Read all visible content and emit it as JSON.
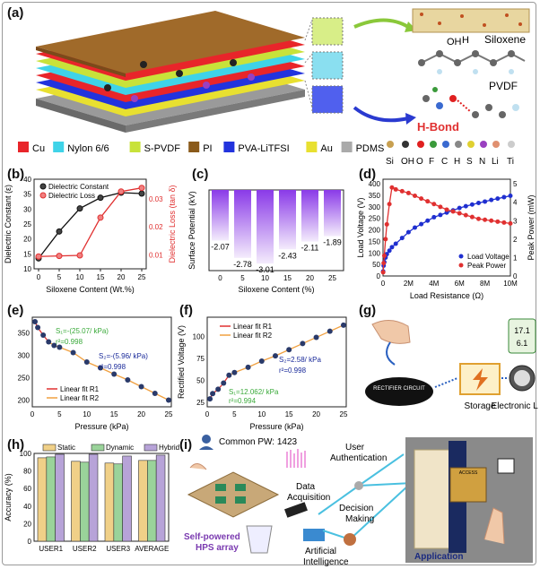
{
  "panels": {
    "a": "(a)",
    "b": "(b)",
    "c": "(c)",
    "d": "(d)",
    "e": "(e)",
    "f": "(f)",
    "g": "(g)",
    "h": "(h)",
    "i": "(i)"
  },
  "panel_a": {
    "labels": {
      "siloxene": "Siloxene",
      "pvdf": "PVDF",
      "hbond": "H-Bond",
      "oh": "OH",
      "h": "H"
    },
    "legend": [
      {
        "name": "Cu",
        "color": "#e8252a"
      },
      {
        "name": "Nylon 6/6",
        "color": "#3fd3e8"
      },
      {
        "name": "S-PVDF",
        "color": "#c8e23a"
      },
      {
        "name": "PI",
        "color": "#8a5a1a"
      },
      {
        "name": "PVA-LiTFSI",
        "color": "#2233dd"
      },
      {
        "name": "Au",
        "color": "#e8e030"
      },
      {
        "name": "PDMS",
        "color": "#aaaaaa"
      }
    ],
    "atoms": [
      {
        "name": "Si",
        "color": "#c8a050"
      },
      {
        "name": "OH",
        "color": "#333333"
      },
      {
        "name": "O",
        "color": "#e02020"
      },
      {
        "name": "F",
        "color": "#3a9a3a"
      },
      {
        "name": "C",
        "color": "#3a6ad0"
      },
      {
        "name": "H",
        "color": "#888888"
      },
      {
        "name": "S",
        "color": "#e0d030"
      },
      {
        "name": "N",
        "color": "#9a40c0"
      },
      {
        "name": "Li",
        "color": "#e09070"
      },
      {
        "name": "Ti",
        "color": "#cccccc"
      }
    ]
  },
  "chart_data": [
    {
      "id": "b",
      "type": "line",
      "xlabel": "Siloxene Content (Wt.%)",
      "ylabel": "Dielectric Constant (ε)",
      "y2label": "Dielectric Loss (tan δ)",
      "x": [
        0,
        5,
        10,
        15,
        20,
        25
      ],
      "xticks": [
        "0",
        "5",
        "10",
        "15",
        "20",
        "25"
      ],
      "yticks": [
        "10",
        "15",
        "20",
        "25",
        "30",
        "35",
        "40"
      ],
      "y2ticks": [
        "0.01",
        "0.02",
        "0.03"
      ],
      "ylim": [
        10,
        40
      ],
      "y2lim": [
        0.005,
        0.037
      ],
      "series": [
        {
          "name": "Dielectric Constant",
          "axis": "left",
          "color": "#111111",
          "values": [
            13.5,
            22.5,
            30.2,
            33.8,
            35.5,
            35.2
          ]
        },
        {
          "name": "Dielectric Loss",
          "axis": "right",
          "color": "#e03030",
          "values": [
            0.0094,
            0.0096,
            0.0098,
            0.0233,
            0.0326,
            0.0339
          ]
        }
      ]
    },
    {
      "id": "c",
      "type": "bar",
      "ylabel": "Surface Potential (kV)",
      "xlabel": "Siloxene Content (%)",
      "categories": [
        "0",
        "5",
        "10",
        "15",
        "20",
        "25"
      ],
      "values": [
        -2.07,
        -2.78,
        -3.01,
        -2.43,
        -2.11,
        -1.89
      ],
      "value_labels": [
        "-2.07",
        "-2.78",
        "-3.01",
        "-2.43",
        "-2.11",
        "-1.89"
      ],
      "ylim": [
        -3.3,
        0
      ]
    },
    {
      "id": "d",
      "type": "line",
      "xlabel": "Load Resistance (Ω)",
      "ylabel": "Load Voltage (V)",
      "y2label": "Peak Power (mW)",
      "xticks": [
        "0",
        "2M",
        "4M",
        "6M",
        "8M",
        "10M"
      ],
      "yticks": [
        "0",
        "50",
        "100",
        "150",
        "200",
        "250",
        "300",
        "350",
        "400"
      ],
      "y2ticks": [
        "0",
        "1",
        "2",
        "3",
        "4",
        "5"
      ],
      "xlim": [
        0,
        10
      ],
      "ylim": [
        0,
        420
      ],
      "y2lim": [
        0,
        5.25
      ],
      "series": [
        {
          "name": "Load Voltage",
          "axis": "left",
          "color": "#1f2fd0",
          "x": [
            0.01,
            0.05,
            0.1,
            0.2,
            0.3,
            0.5,
            0.7,
            1,
            1.5,
            2,
            2.5,
            3,
            3.5,
            4,
            4.5,
            5,
            5.5,
            6,
            6.5,
            7,
            7.5,
            8,
            8.5,
            9,
            9.5,
            10
          ],
          "values": [
            20,
            45,
            60,
            80,
            95,
            110,
            125,
            140,
            165,
            190,
            210,
            225,
            240,
            255,
            265,
            275,
            285,
            295,
            303,
            310,
            317,
            323,
            330,
            336,
            342,
            348
          ]
        },
        {
          "name": "Peak Power",
          "axis": "right",
          "color": "#e03030",
          "x": [
            0.01,
            0.05,
            0.1,
            0.2,
            0.3,
            0.5,
            0.7,
            1,
            1.5,
            2,
            2.5,
            3,
            3.5,
            4,
            4.5,
            5,
            5.5,
            6,
            6.5,
            7,
            7.5,
            8,
            8.5,
            9,
            9.5,
            10
          ],
          "values": [
            0.2,
            0.7,
            1.1,
            2.0,
            2.8,
            3.9,
            4.8,
            4.7,
            4.6,
            4.5,
            4.35,
            4.2,
            4.05,
            3.9,
            3.75,
            3.6,
            3.5,
            3.4,
            3.3,
            3.2,
            3.1,
            3.05,
            3.0,
            2.95,
            2.9,
            2.85
          ]
        }
      ]
    },
    {
      "id": "e",
      "type": "scatter",
      "xlabel": "Pressure (kPa)",
      "ylabel": "",
      "xticks": [
        "0",
        "5",
        "10",
        "15",
        "20",
        "25"
      ],
      "yticks": [
        "200",
        "250",
        "300",
        "350"
      ],
      "xlim": [
        0,
        25.5
      ],
      "ylim": [
        185,
        385
      ],
      "x": [
        0.5,
        1,
        2,
        3,
        4,
        5,
        7.5,
        10,
        12.5,
        15,
        17.5,
        20,
        22.5,
        25
      ],
      "values": [
        375,
        362,
        345,
        330,
        322,
        318,
        306,
        285,
        272,
        258,
        245,
        230,
        215,
        200
      ],
      "annotations": [
        {
          "text": "S₁=-(25.07/ kPa)",
          "color": "#3aaa3a"
        },
        {
          "text": "r²=0.998",
          "color": "#3aaa3a"
        },
        {
          "text": "S₂=-(5.96/ kPa)",
          "color": "#1a2a9a"
        },
        {
          "text": "r²=0.998",
          "color": "#1a2a9a"
        }
      ],
      "legend": [
        {
          "name": "Linear fit R1",
          "color": "#e03030"
        },
        {
          "name": "Linear fit R2",
          "color": "#f0a040"
        }
      ]
    },
    {
      "id": "f",
      "type": "scatter",
      "xlabel": "Pressure (kPa)",
      "ylabel": "Rectified Voltage (V)",
      "xticks": [
        "0",
        "5",
        "10",
        "15",
        "20",
        "25"
      ],
      "yticks": [
        "25",
        "50",
        "75",
        "100"
      ],
      "xlim": [
        0,
        25.5
      ],
      "ylim": [
        20,
        122
      ],
      "x": [
        0.5,
        1,
        2,
        3,
        4,
        5,
        7.5,
        10,
        12.5,
        15,
        17.5,
        20,
        22.5,
        25
      ],
      "values": [
        29,
        35,
        40,
        47,
        56,
        59,
        65,
        72,
        78,
        85,
        92,
        99,
        106,
        113
      ],
      "annotations": [
        {
          "text": "S₂=2.58/ kPa",
          "color": "#1a2a9a"
        },
        {
          "text": "r²=0.998",
          "color": "#1a2a9a"
        },
        {
          "text": "S₁=12.062/ kPa",
          "color": "#3aaa3a"
        },
        {
          "text": "r²=0.994",
          "color": "#3aaa3a"
        }
      ],
      "legend": [
        {
          "name": "Linear fit R1",
          "color": "#e03030"
        },
        {
          "name": "Linear fit R2",
          "color": "#f0a040"
        }
      ]
    },
    {
      "id": "h",
      "type": "bar",
      "ylabel": "Accuracy (%)",
      "categories": [
        "USER1",
        "USER2",
        "USER3",
        "AVERAGE"
      ],
      "yticks": [
        "0",
        "20",
        "40",
        "60",
        "80",
        "100"
      ],
      "ylim": [
        0,
        100
      ],
      "series": [
        {
          "name": "Static",
          "color": "#f0d088",
          "values": [
            95,
            91,
            89,
            92
          ]
        },
        {
          "name": "Dynamic",
          "color": "#9ad39a",
          "values": [
            96,
            90,
            88,
            92
          ]
        },
        {
          "name": "Hybrid",
          "color": "#b7a3d8",
          "values": [
            99,
            99,
            97,
            98
          ]
        }
      ]
    }
  ],
  "panel_g": {
    "rectifier": "RECTIFIER CIRCUIT",
    "storage": "Storage",
    "load": "Electronic Load",
    "display1": "17.1",
    "display2": "6.1"
  },
  "panel_i": {
    "common_pw": "Common PW: 1423",
    "user_auth_1": "User",
    "user_auth_2": "Authentication",
    "data_acq_1": "Data",
    "data_acq_2": "Acquisition",
    "decision_1": "Decision",
    "decision_2": "Making",
    "ai_1": "Artificial",
    "ai_2": "Intelligence",
    "hps_1": "Self-powered",
    "hps_2": "HPS array",
    "application": "Application",
    "access": "ACCESS"
  }
}
